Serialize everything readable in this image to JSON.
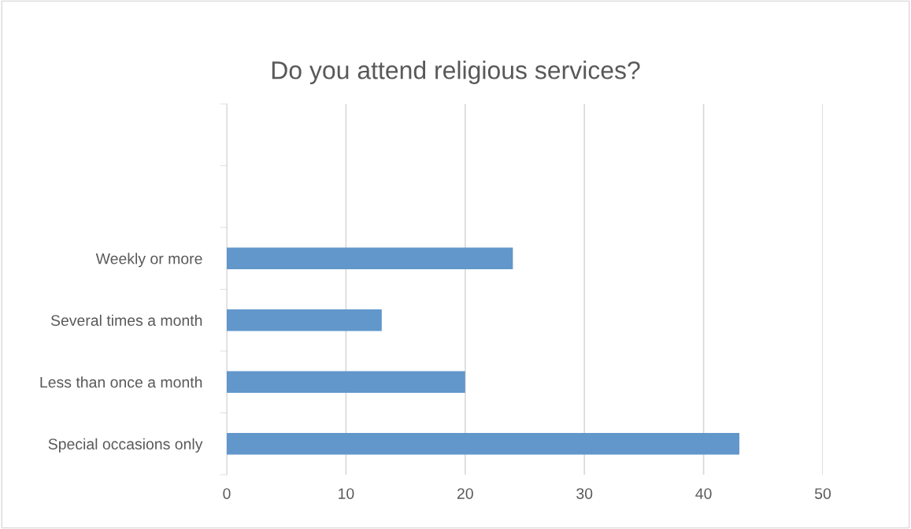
{
  "chart_data": {
    "type": "bar",
    "orientation": "horizontal",
    "title": "Do you attend religious services?",
    "categories": [
      null,
      null,
      "Weekly or more",
      "Several times a month",
      "Less than once a month",
      "Special occasions only"
    ],
    "values": [
      null,
      null,
      24,
      13,
      20,
      43
    ],
    "color": "#6197cb",
    "xlim": [
      0,
      50
    ],
    "xticks": [
      0,
      10,
      20,
      30,
      40,
      50
    ],
    "grid": "x"
  }
}
